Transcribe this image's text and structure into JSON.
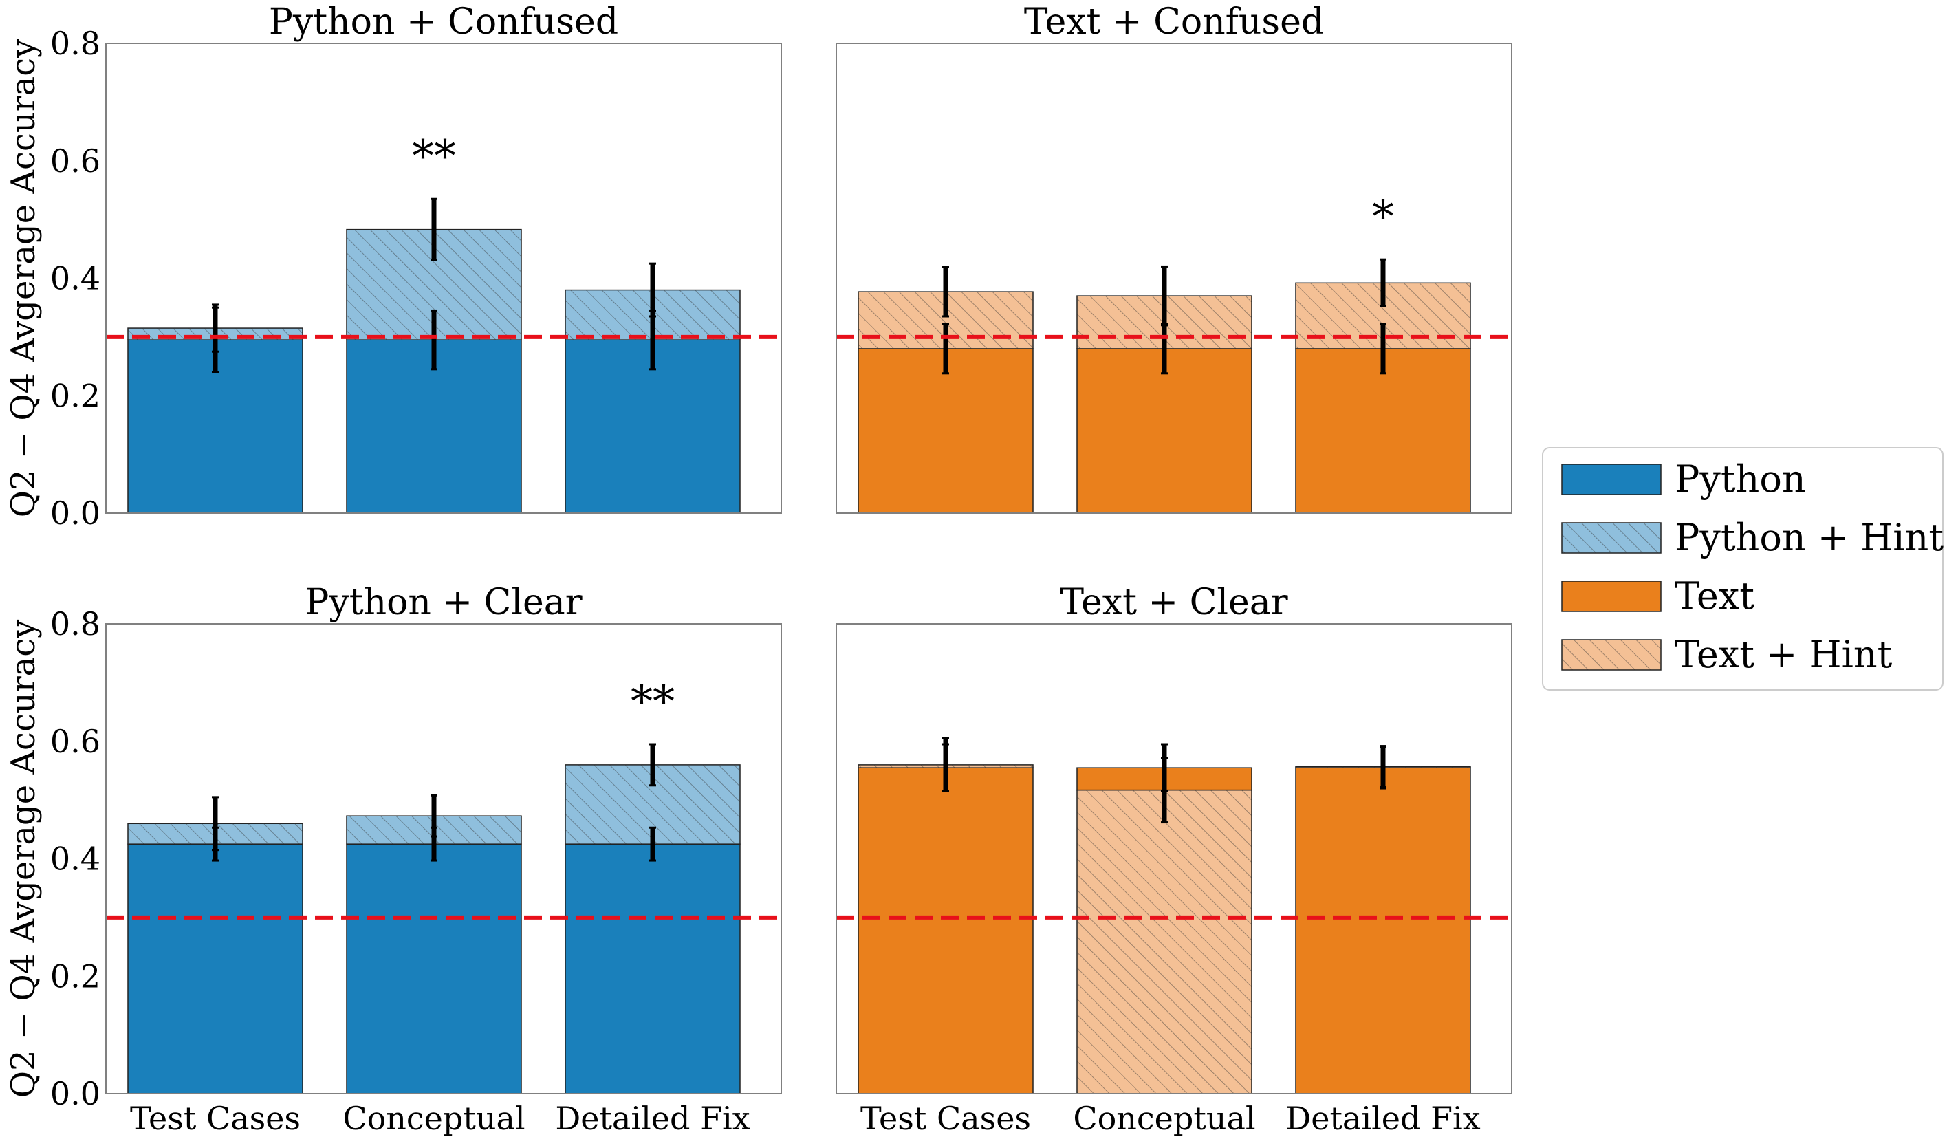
{
  "colors": {
    "python": "#1a80bb",
    "python_hint": "#8fbfdd",
    "text": "#ea801c",
    "text_hint": "#f4c095",
    "baseline": "#e8101a",
    "error": "#000000"
  },
  "legend": {
    "placement": "right-center",
    "items": [
      {
        "label": "Python",
        "color": "#1a80bb",
        "hatched": false
      },
      {
        "label": "Python + Hint",
        "color": "#8fbfdd",
        "hatched": true
      },
      {
        "label": "Text",
        "color": "#ea801c",
        "hatched": false
      },
      {
        "label": "Text + Hint",
        "color": "#f4c095",
        "hatched": true
      }
    ]
  },
  "chart_data": [
    {
      "type": "bar",
      "title": "Python + Confused",
      "ylabel": "Q2 − Q4 Avgerage Accuracy",
      "ylim": [
        0,
        0.8
      ],
      "yticks": [
        "0.0",
        "0.2",
        "0.4",
        "0.6",
        "0.8"
      ],
      "show_ylabels": true,
      "show_xlabels": false,
      "categories": [
        "Test Cases",
        "Conceptual",
        "Detailed Fix"
      ],
      "baseline": 0.3,
      "palette": "python",
      "series": [
        {
          "name": "Python",
          "values": [
            0.295,
            0.295,
            0.295
          ],
          "errors": [
            0.055,
            0.05,
            0.05
          ]
        },
        {
          "name": "Python + Hint",
          "values": [
            0.315,
            0.483,
            0.38
          ],
          "errors": [
            0.04,
            0.052,
            0.045
          ]
        }
      ],
      "annotations": [
        "",
        "**",
        ""
      ]
    },
    {
      "type": "bar",
      "title": "Text + Confused",
      "ylabel": "",
      "ylim": [
        0,
        0.8
      ],
      "yticks": [
        "0.0",
        "0.2",
        "0.4",
        "0.6",
        "0.8"
      ],
      "show_ylabels": false,
      "show_xlabels": false,
      "categories": [
        "Test Cases",
        "Conceptual",
        "Detailed Fix"
      ],
      "baseline": 0.3,
      "palette": "text",
      "series": [
        {
          "name": "Text",
          "values": [
            0.28,
            0.28,
            0.28
          ],
          "errors": [
            0.042,
            0.042,
            0.042
          ]
        },
        {
          "name": "Text + Hint",
          "values": [
            0.377,
            0.37,
            0.392
          ],
          "errors": [
            0.042,
            0.05,
            0.04
          ]
        }
      ],
      "annotations": [
        "",
        "",
        "*"
      ]
    },
    {
      "type": "bar",
      "title": "Python + Clear",
      "ylabel": "Q2 − Q4 Avgerage Accuracy",
      "ylim": [
        0,
        0.8
      ],
      "yticks": [
        "0.0",
        "0.2",
        "0.4",
        "0.6",
        "0.8"
      ],
      "show_ylabels": true,
      "show_xlabels": true,
      "categories": [
        "Test Cases",
        "Conceptual",
        "Detailed Fix"
      ],
      "baseline": 0.3,
      "palette": "python",
      "series": [
        {
          "name": "Python",
          "values": [
            0.425,
            0.425,
            0.425
          ],
          "errors": [
            0.028,
            0.028,
            0.028
          ]
        },
        {
          "name": "Python + Hint",
          "values": [
            0.46,
            0.473,
            0.56
          ],
          "errors": [
            0.045,
            0.035,
            0.035
          ]
        }
      ],
      "annotations": [
        "",
        "",
        "**"
      ]
    },
    {
      "type": "bar",
      "title": "Text + Clear",
      "ylabel": "",
      "ylim": [
        0,
        0.8
      ],
      "yticks": [
        "0.0",
        "0.2",
        "0.4",
        "0.6",
        "0.8"
      ],
      "show_ylabels": false,
      "show_xlabels": true,
      "categories": [
        "Test Cases",
        "Conceptual",
        "Detailed Fix"
      ],
      "baseline": 0.3,
      "palette": "text",
      "series": [
        {
          "name": "Text",
          "values": [
            0.555,
            0.555,
            0.555
          ],
          "errors": [
            0.04,
            0.04,
            0.035
          ]
        },
        {
          "name": "Text + Hint",
          "values": [
            0.56,
            0.517,
            0.557
          ],
          "errors": [
            0.045,
            0.055,
            0.035
          ]
        }
      ],
      "annotations": [
        "",
        "",
        ""
      ]
    }
  ]
}
